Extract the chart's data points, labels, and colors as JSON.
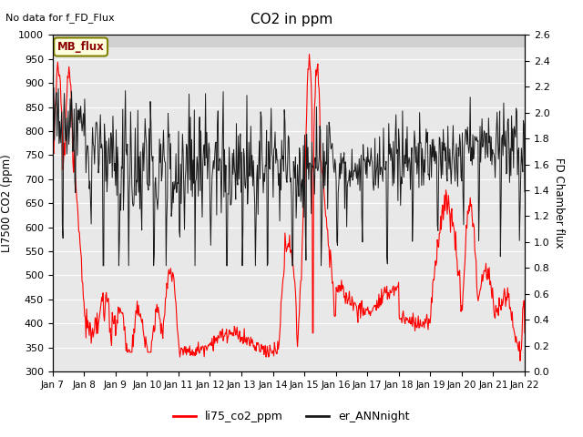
{
  "title": "CO2 in ppm",
  "ylabel_left": "LI7500 CO2 (ppm)",
  "ylabel_right": "FD Chamber flux",
  "top_label": "No data for f_FD_Flux",
  "legend_label1": "li75_co2_ppm",
  "legend_label2": "er_ANNnight",
  "annotation_box": "MB_flux",
  "ylim_left": [
    300,
    1000
  ],
  "ylim_right": [
    0.0,
    2.6
  ],
  "xtick_labels": [
    "Jan 7",
    "Jan 8",
    "Jan 9",
    "Jan 10",
    "Jan 11",
    "Jan 12",
    "Jan 13",
    "Jan 14",
    "Jan 15",
    "Jan 16",
    "Jan 17",
    "Jan 18",
    "Jan 19",
    "Jan 20",
    "Jan 21",
    "Jan 22"
  ],
  "color_red": "#FF0000",
  "color_black": "#1a1a1a",
  "plot_bg_color": "#E8E8E8",
  "legend_color1": "#FF0000",
  "legend_color2": "#1a1a1a",
  "figsize": [
    6.4,
    4.8
  ],
  "dpi": 100
}
